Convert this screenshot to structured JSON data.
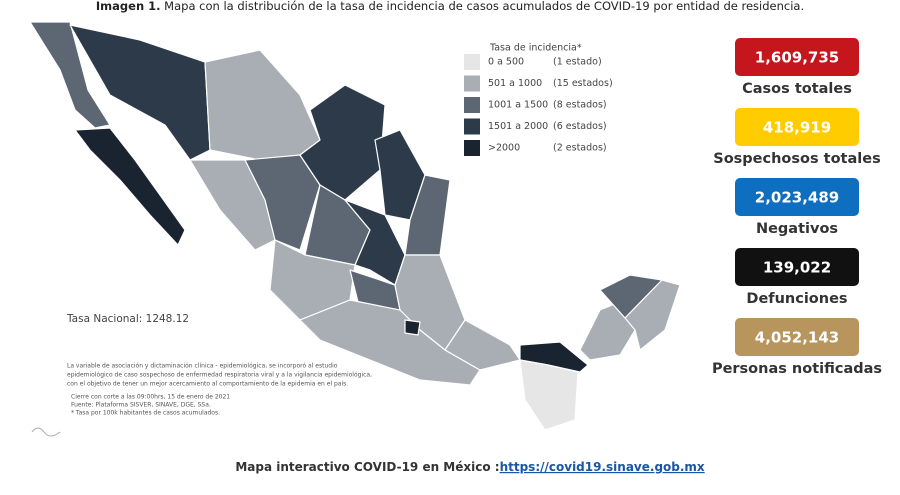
{
  "title": {
    "label": "Imagen 1.",
    "text": "Mapa con la distribución de la tasa de incidencia de casos acumulados de COVID-19 por entidad de residencia."
  },
  "legend": {
    "title": "Tasa de incidencia*",
    "items": [
      {
        "range": "0 a 500",
        "count": "(1 estado)",
        "color": "#e6e6e6"
      },
      {
        "range": "501 a 1000",
        "count": "(15 estados)",
        "color": "#a9adb4"
      },
      {
        "range": "1001 a 1500",
        "count": "(8 estados)",
        "color": "#5d6774"
      },
      {
        "range": "1501 a 2000",
        "count": "(6 estados)",
        "color": "#2c3a4a"
      },
      {
        "range": ">2000",
        "count": "(2 estados)",
        "color": "#1a2330"
      }
    ]
  },
  "national_rate": "Tasa Nacional: 1248.12",
  "notes": [
    "La variable de asociación y dictaminación clínica - epidemiológica, se incorporó al estudio",
    "epidemiológico de caso sospechoso de enfermedad respiratoria viral y a la vigilancia epidemiológica,",
    "con el objetivo de tener un mejor acercamiento al comportamiento de la epidemia en el país.",
    "Cierre con corte a las 09:00hrs, 15 de enero de 2021",
    "Fuente: Plataforma SISVER, SINAVE, DGE, SSa.",
    "* Tasa por 100k habitantes de casos acumulados."
  ],
  "stats": [
    {
      "value": "1,609,735",
      "label": "Casos totales",
      "color": "#c4161c"
    },
    {
      "value": "418,919",
      "label": "Sospechosos totales",
      "color": "#ffcc00"
    },
    {
      "value": "2,023,489",
      "label": "Negativos",
      "color": "#0e6fc0"
    },
    {
      "value": "139,022",
      "label": "Defunciones",
      "color": "#111111"
    },
    {
      "value": "4,052,143",
      "label": "Personas notificadas",
      "color": "#b8955c"
    }
  ],
  "footer": {
    "text": "Mapa interactivo COVID-19 en México :",
    "link": "https://covid19.sinave.gob.mx"
  }
}
